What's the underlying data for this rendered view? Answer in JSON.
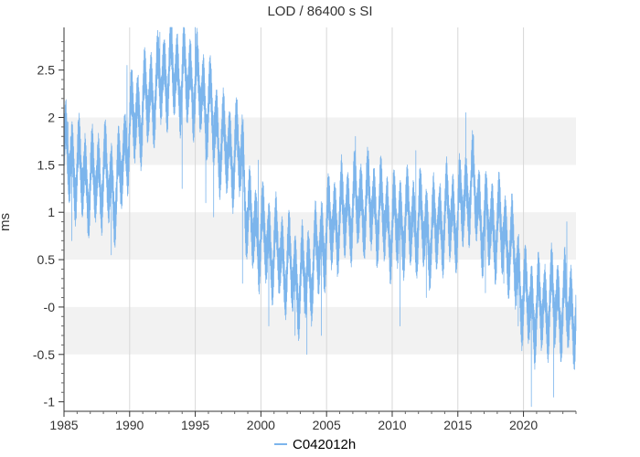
{
  "chart_data": {
    "type": "line",
    "title": "LOD / 86400 s SI",
    "ylabel": "ms",
    "xlabel": "",
    "xlim": [
      1985,
      2024
    ],
    "ylim": [
      -1.1,
      2.95
    ],
    "x_ticks": [
      1985,
      1990,
      1995,
      2000,
      2005,
      2010,
      2015,
      2020
    ],
    "x_tick_labels": [
      "1985",
      "1990",
      "1995",
      "2000",
      "2005",
      "2010",
      "2015",
      "2020"
    ],
    "y_ticks": [
      -1,
      -0.5,
      0,
      0.5,
      1,
      1.5,
      2,
      2.5
    ],
    "y_tick_labels": [
      "-1",
      "-0.5",
      "-0",
      "0.5",
      "1",
      "1.5",
      "2",
      "2.5"
    ],
    "grid": true,
    "legend_position": "bottom-center",
    "series": [
      {
        "name": "C042012h",
        "color": "#7cb5ec",
        "trend": {
          "x": [
            1985,
            1987,
            1988,
            1989,
            1990,
            1991,
            1992,
            1993,
            1994,
            1995,
            1996,
            1997,
            1998,
            1998.6,
            1999,
            2000,
            2001,
            2002,
            2003,
            2004,
            2005,
            2006,
            2007,
            2008,
            2009,
            2010,
            2011,
            2012,
            2013,
            2014,
            2015,
            2016,
            2017,
            2018,
            2019,
            2020,
            2021,
            2022,
            2023,
            2024
          ],
          "y": [
            1.6,
            1.3,
            1.4,
            1.2,
            1.9,
            2.1,
            2.3,
            2.5,
            2.4,
            2.35,
            2.1,
            1.7,
            1.6,
            1.6,
            0.9,
            0.75,
            0.6,
            0.45,
            0.25,
            0.45,
            0.8,
            0.95,
            1.05,
            1.1,
            1.0,
            0.85,
            0.9,
            0.9,
            0.75,
            0.95,
            0.95,
            1.3,
            0.85,
            0.85,
            0.65,
            0.1,
            -0.05,
            0.05,
            0.0,
            -0.05
          ]
        },
        "spikes": [
          {
            "x": 1985.3,
            "y": 1.95
          },
          {
            "x": 1985.6,
            "y": 0.7
          },
          {
            "x": 1988.6,
            "y": 0.55
          },
          {
            "x": 1989.8,
            "y": 2.55
          },
          {
            "x": 1992.3,
            "y": 2.9
          },
          {
            "x": 1994.0,
            "y": 1.25
          },
          {
            "x": 1995.0,
            "y": 2.95
          },
          {
            "x": 1995.8,
            "y": 1.1
          },
          {
            "x": 1996.4,
            "y": 0.95
          },
          {
            "x": 1998.6,
            "y": 0.25
          },
          {
            "x": 1999.8,
            "y": 1.55
          },
          {
            "x": 2000.6,
            "y": -0.2
          },
          {
            "x": 2002.6,
            "y": -0.3
          },
          {
            "x": 2003.5,
            "y": -0.5
          },
          {
            "x": 2004.6,
            "y": -0.3
          },
          {
            "x": 2007.2,
            "y": 1.8
          },
          {
            "x": 2010.6,
            "y": -0.2
          },
          {
            "x": 2011.8,
            "y": 1.65
          },
          {
            "x": 2012.6,
            "y": 0.1
          },
          {
            "x": 2015.6,
            "y": 2.05
          },
          {
            "x": 2016.2,
            "y": 1.8
          },
          {
            "x": 2017.1,
            "y": 0.15
          },
          {
            "x": 2018.5,
            "y": 0.25
          },
          {
            "x": 2019.6,
            "y": -0.2
          },
          {
            "x": 2020.6,
            "y": -1.05
          },
          {
            "x": 2022.3,
            "y": -0.95
          },
          {
            "x": 2023.3,
            "y": 0.9
          },
          {
            "x": 2023.8,
            "y": -0.6
          }
        ]
      }
    ]
  }
}
